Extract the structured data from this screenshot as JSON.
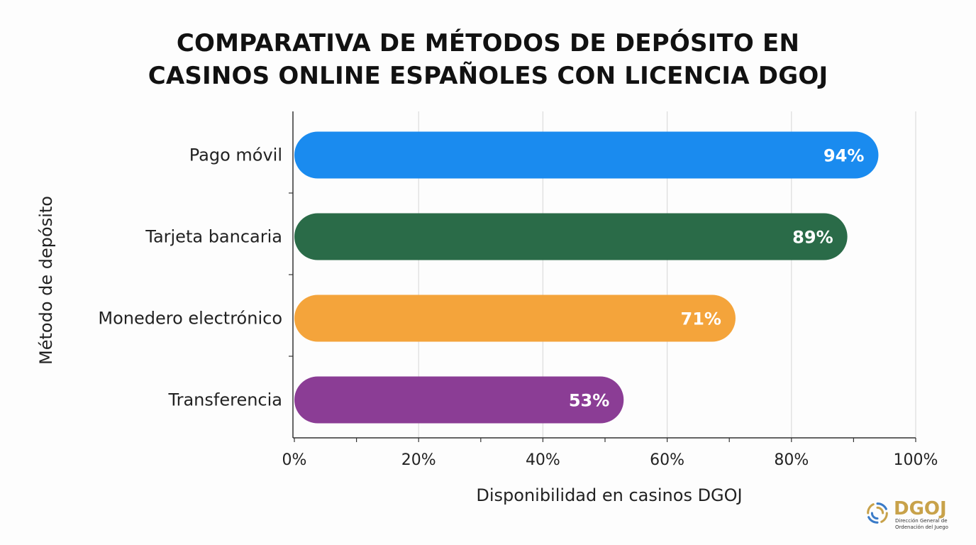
{
  "title_lines": [
    "COMPARATIVA DE MÉTODOS DE DEPÓSITO EN",
    "CASINOS ONLINE ESPAÑOLES CON LICENCIA DGOJ"
  ],
  "chart_data": {
    "type": "bar",
    "orientation": "horizontal",
    "title": "COMPARATIVA DE MÉTODOS DE DEPÓSITO EN CASINOS ONLINE ESPAÑOLES CON LICENCIA DGOJ",
    "xlabel": "Disponibilidad en casinos DGOJ",
    "ylabel": "Método de depósito",
    "xlim": [
      0,
      100
    ],
    "x_ticks": [
      "0%",
      "20%",
      "40%",
      "60%",
      "80%",
      "100%"
    ],
    "grid": "vertical",
    "legend": "none",
    "categories": [
      "Pago móvil",
      "Tarjeta bancaria",
      "Monedero electrónico",
      "Transferencia"
    ],
    "values": [
      94,
      89,
      71,
      53
    ],
    "value_labels": [
      "94%",
      "89%",
      "71%",
      "53%"
    ],
    "colors": [
      "#1a8bef",
      "#2a6b48",
      "#f4a43b",
      "#8b3d95"
    ]
  },
  "logo": {
    "name": "DGOJ",
    "subtitle": "Dirección General de Ordenación del Juego",
    "icon": "dgoj-emblem-icon",
    "color": "#c8a24a"
  }
}
